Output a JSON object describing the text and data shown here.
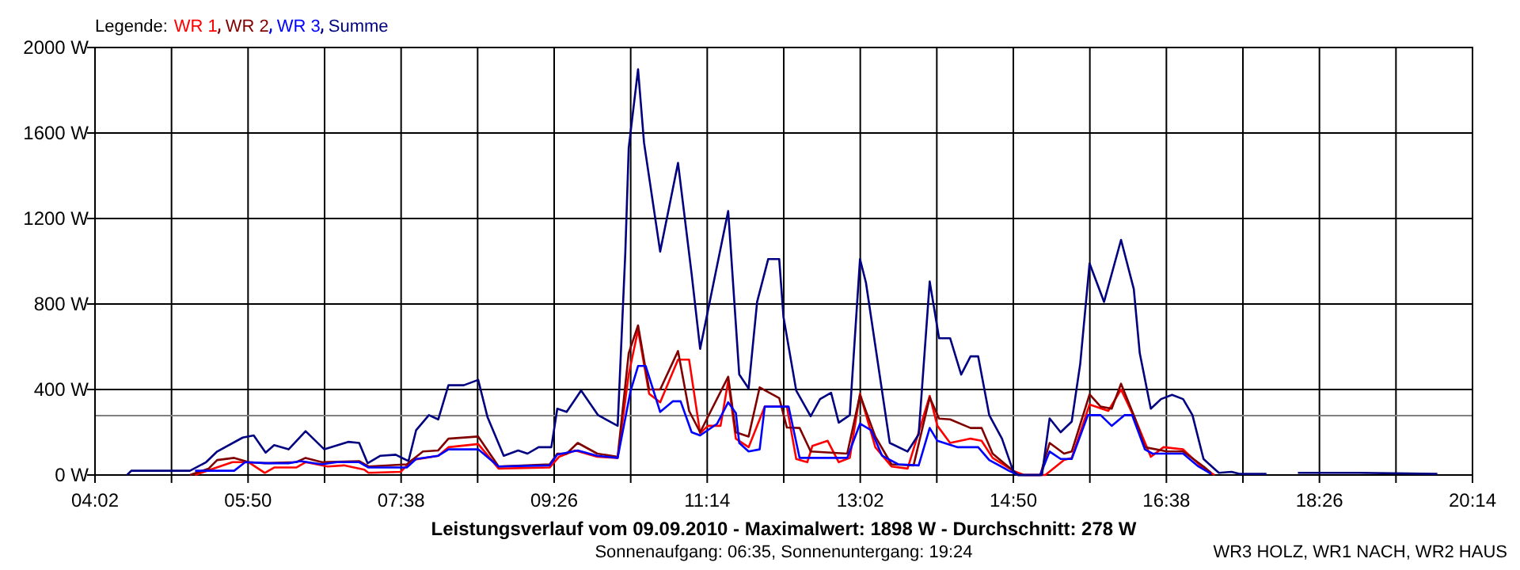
{
  "chart_data": {
    "type": "line",
    "title": "Leistungsverlauf vom 09.09.2010 - Maximalwert: 1898 W - Durchschnitt: 278 W",
    "subtitle": "Sonnenaufgang: 06:35, Sonnenuntergang: 19:24",
    "legend_title": "Legende:",
    "legend": "top left",
    "grid": true,
    "marker": "none",
    "line_style": "solid",
    "annotations": [
      "WR3 HOLZ, WR1 NACH, WR2 HAUS"
    ],
    "xlim": [
      4.0333,
      20.2333
    ],
    "xticks": [
      {
        "value": 4.0333,
        "label": "04:02"
      },
      {
        "value": 4.9333,
        "label": null
      },
      {
        "value": 5.8333,
        "label": "05:50"
      },
      {
        "value": 6.7333,
        "label": null
      },
      {
        "value": 7.6333,
        "label": "07:38"
      },
      {
        "value": 8.5333,
        "label": null
      },
      {
        "value": 9.4333,
        "label": "09:26"
      },
      {
        "value": 10.3333,
        "label": null
      },
      {
        "value": 11.2333,
        "label": "11:14"
      },
      {
        "value": 12.1333,
        "label": null
      },
      {
        "value": 13.0333,
        "label": "13:02"
      },
      {
        "value": 13.9333,
        "label": null
      },
      {
        "value": 14.8333,
        "label": "14:50"
      },
      {
        "value": 15.7333,
        "label": null
      },
      {
        "value": 16.6333,
        "label": "16:38"
      },
      {
        "value": 17.5333,
        "label": null
      },
      {
        "value": 18.4333,
        "label": "18:26"
      },
      {
        "value": 19.3333,
        "label": null
      },
      {
        "value": 20.2333,
        "label": "20:14"
      }
    ],
    "ylim": [
      0,
      2000
    ],
    "yticks": [
      {
        "value": 0,
        "label": "0 W"
      },
      {
        "value": 400,
        "label": "400 W"
      },
      {
        "value": 800,
        "label": "800 W"
      },
      {
        "value": 1200,
        "label": "1200 W"
      },
      {
        "value": 1600,
        "label": "1600 W"
      },
      {
        "value": 2000,
        "label": "2000 W"
      }
    ],
    "ref_lines": [
      {
        "axis": "y",
        "value": 278,
        "color": "#808080"
      }
    ],
    "series": [
      {
        "name": "WR 1",
        "color": "#ff0000",
        "x": [
          5.21,
          5.39,
          5.65,
          5.84,
          6.03,
          6.14,
          6.4,
          6.51,
          6.77,
          6.96,
          7.2,
          7.25,
          7.63,
          7.76,
          8.07,
          8.19,
          8.54,
          8.78,
          9.38,
          9.49,
          9.68,
          9.94,
          10.18,
          10.31,
          10.42,
          10.55,
          10.68,
          10.89,
          11.02,
          11.15,
          11.24,
          11.39,
          11.48,
          11.57,
          11.72,
          11.91,
          12.17,
          12.28,
          12.41,
          12.47,
          12.65,
          12.78,
          12.91,
          13.03,
          13.21,
          13.4,
          13.59,
          13.85,
          13.94,
          14.09,
          14.33,
          14.46,
          14.59,
          14.83,
          14.96,
          15.21,
          15.43,
          15.52,
          15.73,
          15.95,
          16.1,
          16.29,
          16.45,
          16.6,
          16.83,
          17.07,
          17.2
        ],
        "values": [
          0,
          25,
          60,
          60,
          10,
          35,
          35,
          60,
          40,
          45,
          25,
          10,
          15,
          70,
          90,
          130,
          145,
          30,
          35,
          85,
          115,
          85,
          80,
          470,
          680,
          380,
          340,
          540,
          540,
          195,
          230,
          230,
          440,
          170,
          130,
          320,
          320,
          75,
          60,
          136,
          160,
          60,
          80,
          380,
          130,
          40,
          30,
          370,
          230,
          150,
          170,
          160,
          80,
          20,
          0,
          0,
          70,
          80,
          330,
          300,
          400,
          240,
          85,
          130,
          120,
          30,
          0
        ]
      },
      {
        "name": "WR 2",
        "color": "#800000",
        "x": [
          5.15,
          5.37,
          5.47,
          5.67,
          5.84,
          6.03,
          6.4,
          6.51,
          6.7,
          7.14,
          7.25,
          7.7,
          7.89,
          8.07,
          8.19,
          8.54,
          8.78,
          9.38,
          9.47,
          9.58,
          9.71,
          9.94,
          10.18,
          10.31,
          10.42,
          10.55,
          10.68,
          10.89,
          11.02,
          11.15,
          11.48,
          11.57,
          11.72,
          11.85,
          12.08,
          12.17,
          12.32,
          12.45,
          12.88,
          13.03,
          13.21,
          13.4,
          13.66,
          13.85,
          13.96,
          14.09,
          14.33,
          14.46,
          14.59,
          14.83,
          14.89,
          15.15,
          15.26,
          15.43,
          15.52,
          15.73,
          15.86,
          15.99,
          16.1,
          16.27,
          16.38,
          16.64,
          16.83,
          17.07,
          17.16
        ],
        "values": [
          0,
          30,
          70,
          80,
          60,
          55,
          60,
          80,
          60,
          65,
          40,
          50,
          110,
          115,
          170,
          180,
          40,
          50,
          100,
          100,
          150,
          100,
          85,
          570,
          700,
          400,
          400,
          580,
          300,
          200,
          460,
          200,
          180,
          410,
          360,
          222,
          220,
          110,
          100,
          375,
          180,
          50,
          45,
          363,
          264,
          260,
          220,
          220,
          100,
          20,
          0,
          0,
          150,
          100,
          110,
          377,
          320,
          310,
          427,
          260,
          130,
          110,
          110,
          40,
          10
        ]
      },
      {
        "name": "WR 3",
        "color": "#0000ff",
        "x": [
          5.21,
          5.67,
          5.8,
          6.08,
          6.31,
          6.45,
          6.7,
          6.88,
          7.14,
          7.25,
          7.7,
          7.81,
          8.07,
          8.19,
          8.54,
          8.78,
          9.38,
          9.47,
          9.71,
          9.94,
          10.18,
          10.33,
          10.42,
          10.51,
          10.68,
          10.83,
          10.92,
          11.05,
          11.15,
          11.35,
          11.48,
          11.57,
          11.61,
          11.72,
          11.85,
          11.91,
          12.19,
          12.32,
          12.88,
          13.03,
          13.16,
          13.29,
          13.48,
          13.72,
          13.85,
          13.94,
          14.18,
          14.42,
          14.55,
          14.78,
          14.89,
          15.15,
          15.26,
          15.39,
          15.52,
          15.71,
          15.86,
          15.99,
          16.14,
          16.23,
          16.38,
          16.47,
          16.83,
          17.01,
          17.16
        ],
        "values": [
          20,
          20,
          60,
          55,
          55,
          65,
          50,
          60,
          60,
          35,
          35,
          75,
          90,
          120,
          120,
          40,
          45,
          95,
          115,
          90,
          80,
          390,
          510,
          510,
          295,
          345,
          345,
          200,
          185,
          240,
          340,
          290,
          150,
          110,
          120,
          320,
          320,
          80,
          80,
          240,
          210,
          90,
          50,
          45,
          220,
          160,
          130,
          130,
          70,
          20,
          0,
          0,
          110,
          75,
          75,
          280,
          280,
          230,
          280,
          280,
          120,
          100,
          100,
          40,
          5
        ]
      },
      {
        "name": "Summe",
        "color": "#000080",
        "x": [
          4.41,
          4.46,
          5.15,
          5.34,
          5.47,
          5.77,
          5.9,
          6.04,
          6.14,
          6.31,
          6.51,
          6.73,
          7.01,
          7.14,
          7.24,
          7.39,
          7.57,
          7.72,
          7.81,
          7.96,
          8.07,
          8.19,
          8.37,
          8.54,
          8.65,
          8.84,
          9.01,
          9.12,
          9.25,
          9.4,
          9.47,
          9.58,
          9.75,
          9.95,
          10.18,
          10.27,
          10.31,
          10.42,
          10.49,
          10.68,
          10.89,
          11.05,
          11.15,
          11.48,
          11.61,
          11.72,
          11.82,
          11.95,
          12.08,
          12.13,
          12.28,
          12.45,
          12.56,
          12.69,
          12.78,
          12.91,
          13.03,
          13.1,
          13.38,
          13.59,
          13.72,
          13.85,
          13.96,
          14.09,
          14.22,
          14.33,
          14.42,
          14.55,
          14.7,
          14.83,
          14.89,
          15.17,
          15.26,
          15.39,
          15.52,
          15.62,
          15.73,
          15.9,
          16.1,
          16.25,
          16.32,
          16.45,
          16.57,
          16.7,
          16.83,
          16.94,
          17.07,
          17.25,
          17.4,
          17.5,
          17.81,
          18.0,
          18.18,
          18.9,
          19.82
        ],
        "values": [
          0,
          20,
          20,
          60,
          110,
          175,
          185,
          105,
          140,
          120,
          205,
          120,
          155,
          150,
          55,
          90,
          95,
          65,
          210,
          280,
          260,
          420,
          420,
          445,
          270,
          90,
          115,
          100,
          130,
          130,
          310,
          295,
          395,
          280,
          230,
          1040,
          1530,
          1898,
          1555,
          1045,
          1460,
          940,
          590,
          1235,
          470,
          405,
          810,
          1010,
          1010,
          740,
          395,
          275,
          355,
          385,
          245,
          280,
          1010,
          900,
          150,
          110,
          190,
          905,
          640,
          640,
          470,
          555,
          555,
          280,
          170,
          20,
          0,
          0,
          265,
          200,
          250,
          520,
          990,
          810,
          1100,
          870,
          570,
          310,
          355,
          375,
          355,
          280,
          75,
          10,
          15,
          5,
          5,
          null,
          10,
          10,
          5
        ]
      }
    ]
  }
}
